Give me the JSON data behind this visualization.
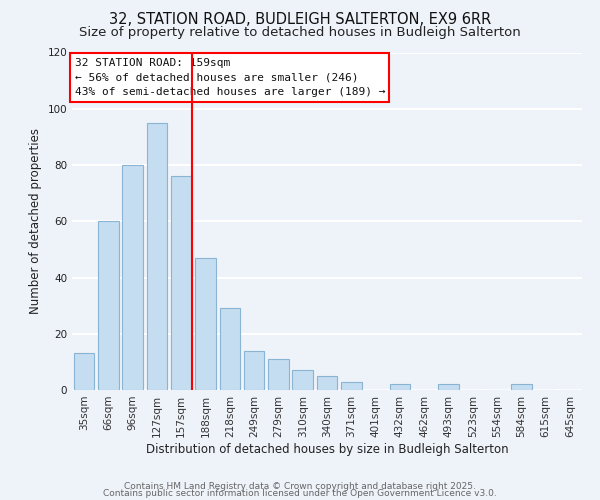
{
  "title_line1": "32, STATION ROAD, BUDLEIGH SALTERTON, EX9 6RR",
  "title_line2": "Size of property relative to detached houses in Budleigh Salterton",
  "xlabel": "Distribution of detached houses by size in Budleigh Salterton",
  "ylabel": "Number of detached properties",
  "bar_labels": [
    "35sqm",
    "66sqm",
    "96sqm",
    "127sqm",
    "157sqm",
    "188sqm",
    "218sqm",
    "249sqm",
    "279sqm",
    "310sqm",
    "340sqm",
    "371sqm",
    "401sqm",
    "432sqm",
    "462sqm",
    "493sqm",
    "523sqm",
    "554sqm",
    "584sqm",
    "615sqm",
    "645sqm"
  ],
  "bar_values": [
    13,
    60,
    80,
    95,
    76,
    47,
    29,
    14,
    11,
    7,
    5,
    3,
    0,
    2,
    0,
    2,
    0,
    0,
    2,
    0,
    0
  ],
  "bar_color": "#c5ddf0",
  "bar_edge_color": "#8ab4d4",
  "highlight_bar_index": 4,
  "highlight_line_color": "red",
  "annotation_title": "32 STATION ROAD: 159sqm",
  "annotation_line2": "← 56% of detached houses are smaller (246)",
  "annotation_line3": "43% of semi-detached houses are larger (189) →",
  "annotation_box_color": "white",
  "annotation_box_edge_color": "red",
  "ylim": [
    0,
    120
  ],
  "yticks": [
    0,
    20,
    40,
    60,
    80,
    100,
    120
  ],
  "background_color": "#eef2f9",
  "grid_color": "white",
  "footer_line1": "Contains HM Land Registry data © Crown copyright and database right 2025.",
  "footer_line2": "Contains public sector information licensed under the Open Government Licence v3.0.",
  "title_fontsize": 10.5,
  "subtitle_fontsize": 9.5,
  "axis_label_fontsize": 8.5,
  "tick_fontsize": 7.5,
  "annotation_fontsize": 8,
  "footer_fontsize": 6.5
}
